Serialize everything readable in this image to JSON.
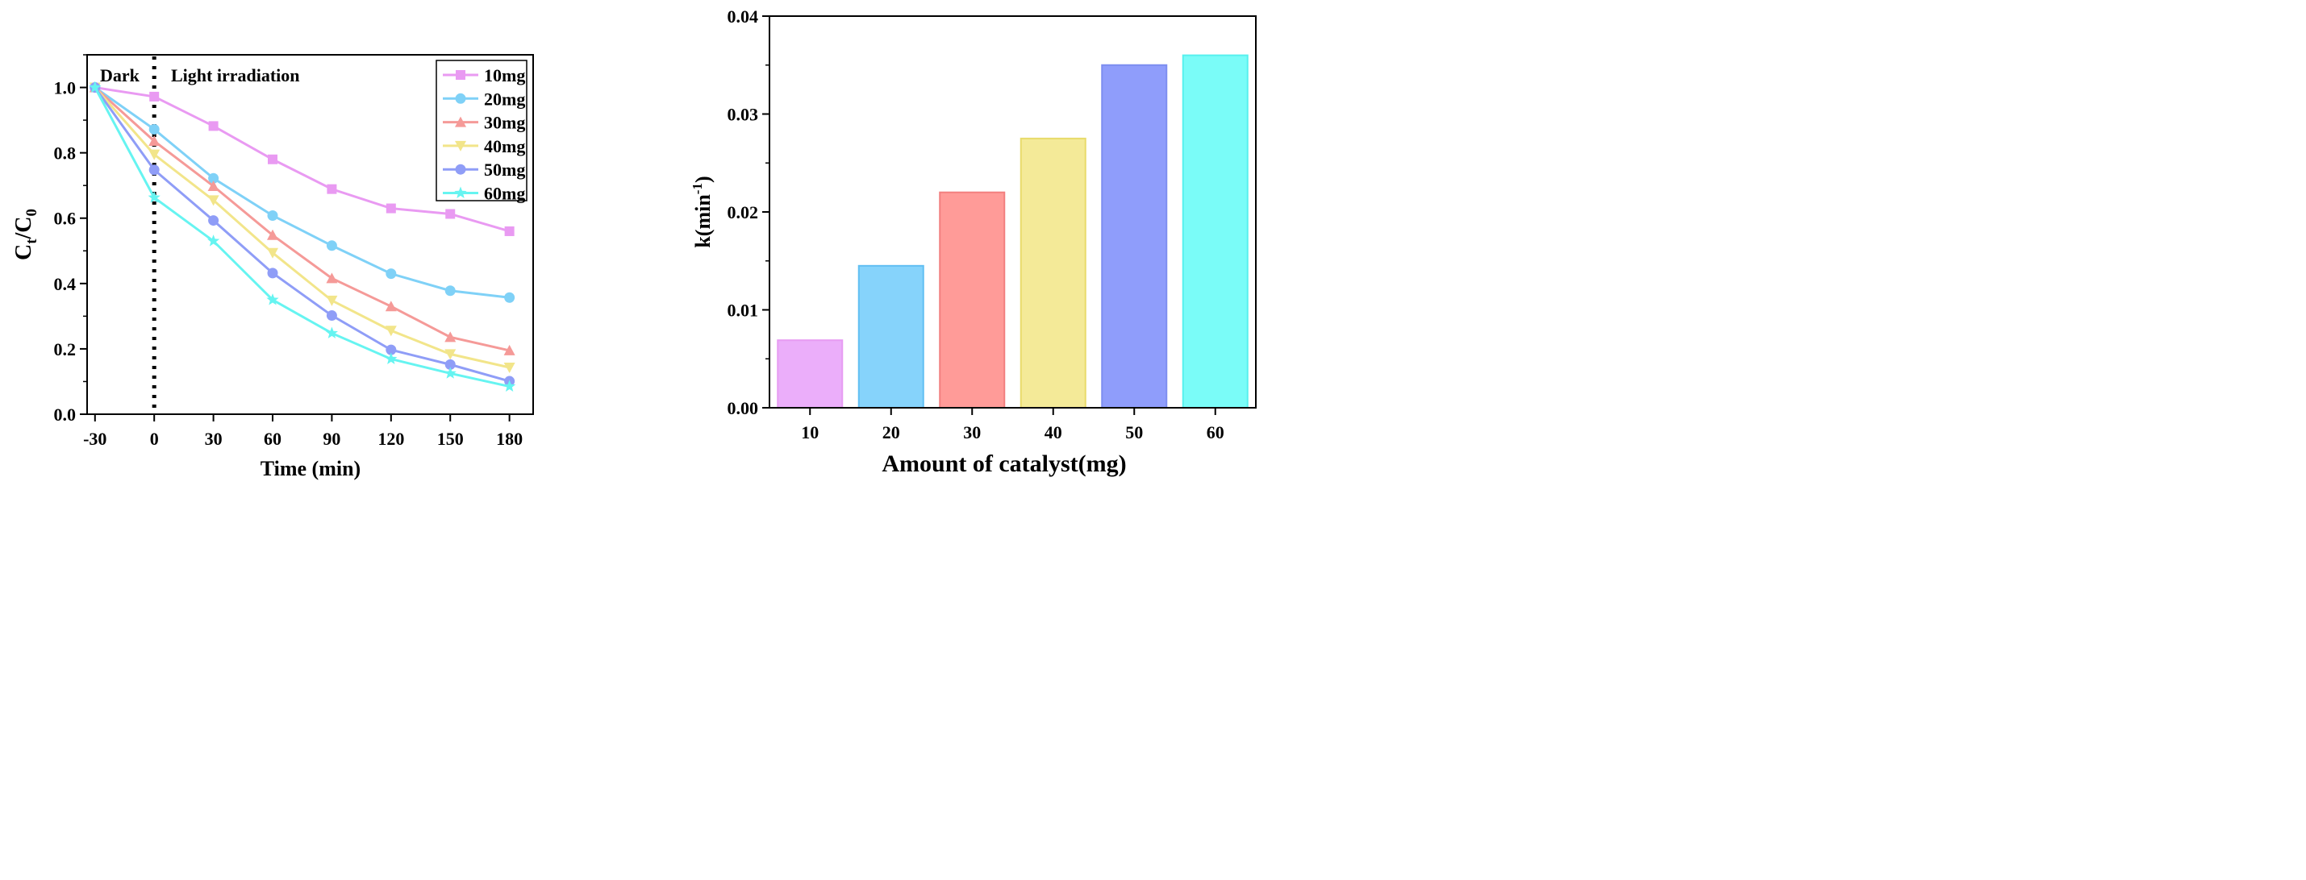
{
  "colors": {
    "series": [
      "#e99af2",
      "#7fd1f7",
      "#f59a98",
      "#f2e58a",
      "#8f9df7",
      "#66f4f1"
    ],
    "bars_fill": [
      "#ebaefa",
      "#86d3fb",
      "#ff9b98",
      "#f4ea98",
      "#8f9dfb",
      "#7afcf8"
    ],
    "bars_stroke": [
      "#e79cf3",
      "#61bff2",
      "#f27f7f",
      "#e8db6b",
      "#7d8ef0",
      "#57f1ee"
    ]
  },
  "chart_data": [
    {
      "type": "line",
      "title": "",
      "xlabel": "Time (min)",
      "ylabel_main": "C",
      "ylabel_sub1": "t",
      "ylabel_sep": "/C",
      "ylabel_sub2": "0",
      "x": [
        -30,
        0,
        30,
        60,
        90,
        120,
        150,
        180
      ],
      "xticks": [
        "-30",
        "0",
        "30",
        "60",
        "90",
        "120",
        "150",
        "180"
      ],
      "xlim": [
        -34,
        192
      ],
      "ylim": [
        0,
        1.1
      ],
      "yticks": [
        "0.0",
        "0.2",
        "0.4",
        "0.6",
        "0.8",
        "1.0"
      ],
      "annotations": {
        "dark": "Dark",
        "light": "Light irradiation"
      },
      "markers": [
        "square",
        "circle",
        "triangle",
        "down-triangle",
        "circle",
        "star"
      ],
      "series": [
        {
          "name": "10mg",
          "values": [
            1.0,
            0.972,
            0.882,
            0.78,
            0.689,
            0.63,
            0.613,
            0.56
          ]
        },
        {
          "name": "20mg",
          "values": [
            1.0,
            0.872,
            0.722,
            0.608,
            0.516,
            0.43,
            0.378,
            0.357
          ]
        },
        {
          "name": "30mg",
          "values": [
            1.0,
            0.836,
            0.698,
            0.548,
            0.416,
            0.33,
            0.236,
            0.195
          ]
        },
        {
          "name": "40mg",
          "values": [
            1.0,
            0.795,
            0.655,
            0.494,
            0.348,
            0.256,
            0.184,
            0.143
          ]
        },
        {
          "name": "50mg",
          "values": [
            1.0,
            0.748,
            0.593,
            0.432,
            0.302,
            0.197,
            0.152,
            0.101
          ]
        },
        {
          "name": "60mg",
          "values": [
            1.0,
            0.663,
            0.53,
            0.35,
            0.248,
            0.169,
            0.125,
            0.085
          ]
        }
      ]
    },
    {
      "type": "bar",
      "title": "",
      "xlabel": "Amount of catalyst(mg)",
      "ylabel_main": "k(min",
      "ylabel_sup": "-1",
      "ylabel_end": ")",
      "categories": [
        "10",
        "20",
        "30",
        "40",
        "50",
        "60"
      ],
      "values": [
        0.0069,
        0.0145,
        0.022,
        0.0275,
        0.035,
        0.036
      ],
      "ylim": [
        0,
        0.04
      ],
      "yticks": [
        "0.00",
        "0.01",
        "0.02",
        "0.03",
        "0.04"
      ]
    }
  ]
}
